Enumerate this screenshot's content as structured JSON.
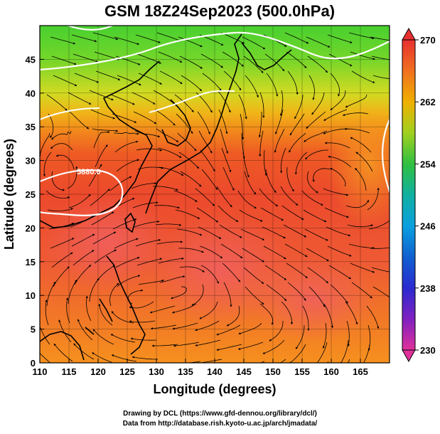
{
  "title": "GSM 18Z24Sep2023 (500.0hPa)",
  "xlabel": "Longitude (degrees)",
  "ylabel": "Latitude  (degrees)",
  "contour_label": "5880.0",
  "credits": {
    "line1": "Drawing by DCL (https://www.gfd-dennou.org/library/dcl/)",
    "line2": "Data from http://database.rish.kyoto-u.ac.jp/arch/jmadata/"
  },
  "chart_data": {
    "type": "heatmap",
    "title": "GSM 18Z24Sep2023 (500.0hPa)",
    "xlabel": "Longitude (degrees)",
    "ylabel": "Latitude  (degrees)",
    "xlim": [
      110,
      170
    ],
    "ylim": [
      0,
      50
    ],
    "xticks": [
      110,
      115,
      120,
      125,
      130,
      135,
      140,
      145,
      150,
      155,
      160,
      165
    ],
    "yticks": [
      0,
      5,
      10,
      15,
      20,
      25,
      30,
      35,
      40,
      45
    ],
    "colorbar": {
      "range": [
        230,
        270
      ],
      "tick_labels": [
        270,
        262,
        254,
        246,
        238,
        230
      ],
      "colors": {
        "230": "#e0309a",
        "238": "#2a2ad0",
        "246": "#0aa0e0",
        "254": "#30c040",
        "262": "#f0b000",
        "270": "#e83030"
      }
    },
    "contour_5880_label": "5880.0"
  }
}
